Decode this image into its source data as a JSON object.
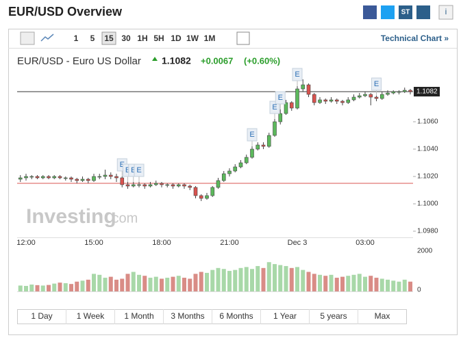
{
  "header": {
    "title": "EUR/USD Overview",
    "share_label": "ST",
    "info_label": "i"
  },
  "toolbar": {
    "intervals": [
      "1",
      "5",
      "15",
      "30",
      "1H",
      "5H",
      "1D",
      "1W",
      "1M"
    ],
    "selected": "15",
    "technical_chart": "Technical Chart »"
  },
  "quote": {
    "name": "EUR/USD - Euro US Dollar",
    "price": "1.1082",
    "change": "+0.0067",
    "change_percent": "(+0.60%)"
  },
  "watermark": {
    "brand": "Investing",
    "suffix": ".com"
  },
  "ranges": [
    "1 Day",
    "1 Week",
    "1 Month",
    "3 Months",
    "6 Months",
    "1 Year",
    "5 years",
    "Max"
  ],
  "chart_data": [
    {
      "type": "candlestick",
      "categories": [
        null,
        "12:00",
        null,
        null,
        null,
        null,
        null,
        null,
        null,
        null,
        null,
        null,
        null,
        "15:00",
        null,
        null,
        null,
        null,
        null,
        null,
        null,
        null,
        null,
        null,
        null,
        "18:00",
        null,
        null,
        null,
        null,
        null,
        null,
        null,
        null,
        null,
        null,
        null,
        "21:00",
        null,
        null,
        null,
        null,
        null,
        null,
        null,
        null,
        null,
        null,
        null,
        "Dec 3",
        null,
        null,
        null,
        null,
        null,
        null,
        null,
        null,
        null,
        null,
        null,
        "03:00",
        null,
        null,
        null,
        null,
        null,
        null,
        null,
        null
      ],
      "open": [
        1.1018,
        1.1019,
        1.102,
        1.102,
        1.1019,
        1.102,
        1.1019,
        1.102,
        1.1019,
        1.1019,
        1.1018,
        1.1017,
        1.1018,
        1.1017,
        1.102,
        1.102,
        1.1021,
        1.102,
        1.1019,
        1.1014,
        1.1013,
        1.1014,
        1.1014,
        1.1013,
        1.1014,
        1.1015,
        1.1014,
        1.1014,
        1.1013,
        1.1014,
        1.1013,
        1.1012,
        1.1006,
        1.1004,
        1.1006,
        1.1012,
        1.1017,
        1.1022,
        1.1024,
        1.1027,
        1.103,
        1.1034,
        1.104,
        1.1043,
        1.1042,
        1.105,
        1.106,
        1.1066,
        1.1074,
        1.107,
        1.1084,
        1.1087,
        1.108,
        1.1074,
        1.1076,
        1.1075,
        1.1076,
        1.1075,
        1.1074,
        1.1076,
        1.1078,
        1.1079,
        1.108,
        1.1078,
        1.1077,
        1.108,
        1.1081,
        1.1082,
        1.1082,
        1.1083
      ],
      "high": [
        1.1021,
        1.1022,
        1.1021,
        1.1021,
        1.1021,
        1.1021,
        1.1021,
        1.1021,
        1.102,
        1.102,
        1.1019,
        1.102,
        1.1019,
        1.1022,
        1.1022,
        1.1025,
        1.1023,
        1.1022,
        1.102,
        1.1016,
        1.1016,
        1.1016,
        1.1015,
        1.1016,
        1.1017,
        1.1016,
        1.1015,
        1.1015,
        1.1015,
        1.1015,
        1.1014,
        1.1013,
        1.1007,
        1.1008,
        1.1013,
        1.1019,
        1.1024,
        1.1026,
        1.1029,
        1.1032,
        1.1036,
        1.1042,
        1.1045,
        1.1045,
        1.1052,
        1.1062,
        1.1069,
        1.1076,
        1.1075,
        1.1086,
        1.1091,
        1.1088,
        1.1081,
        1.1078,
        1.1077,
        1.1078,
        1.1077,
        1.1076,
        1.1078,
        1.108,
        1.1081,
        1.1082,
        1.1081,
        1.1079,
        1.1082,
        1.1083,
        1.1083,
        1.1083,
        1.1085,
        1.1084
      ],
      "low": [
        1.1016,
        1.1017,
        1.1018,
        1.1018,
        1.1018,
        1.1018,
        1.1018,
        1.1018,
        1.1017,
        1.1016,
        1.1015,
        1.1016,
        1.1015,
        1.1016,
        1.1018,
        1.1018,
        1.1018,
        1.1016,
        1.1012,
        1.1011,
        1.1012,
        1.1012,
        1.1011,
        1.1012,
        1.1013,
        1.1012,
        1.1012,
        1.1011,
        1.1012,
        1.1011,
        1.101,
        1.1004,
        1.1002,
        1.1003,
        1.1005,
        1.1011,
        1.1016,
        1.102,
        1.1023,
        1.1026,
        1.1029,
        1.1033,
        1.1039,
        1.104,
        1.1041,
        1.1049,
        1.1058,
        1.1065,
        1.1068,
        1.1069,
        1.1082,
        1.1078,
        1.1072,
        1.1073,
        1.1073,
        1.1074,
        1.1073,
        1.1072,
        1.1073,
        1.1075,
        1.1077,
        1.1078,
        1.1072,
        1.1075,
        1.1076,
        1.1079,
        1.108,
        1.108,
        1.1081,
        1.108
      ],
      "close": [
        1.1019,
        1.102,
        1.102,
        1.1019,
        1.102,
        1.1019,
        1.102,
        1.1019,
        1.1019,
        1.1018,
        1.1017,
        1.1018,
        1.1017,
        1.102,
        1.102,
        1.1021,
        1.102,
        1.1019,
        1.1014,
        1.1013,
        1.1014,
        1.1014,
        1.1013,
        1.1014,
        1.1015,
        1.1014,
        1.1014,
        1.1013,
        1.1014,
        1.1013,
        1.1012,
        1.1006,
        1.1004,
        1.1006,
        1.1012,
        1.1017,
        1.1022,
        1.1024,
        1.1027,
        1.103,
        1.1034,
        1.104,
        1.1043,
        1.1042,
        1.105,
        1.106,
        1.1066,
        1.1074,
        1.107,
        1.1084,
        1.1087,
        1.108,
        1.1074,
        1.1076,
        1.1075,
        1.1076,
        1.1075,
        1.1074,
        1.1076,
        1.1078,
        1.1079,
        1.108,
        1.1078,
        1.1077,
        1.108,
        1.1081,
        1.1082,
        1.1082,
        1.1083,
        1.1082
      ],
      "up_color": "#5cb85c",
      "down_color": "#d9534f",
      "ylim": [
        1.09765,
        1.11015
      ],
      "yticks": [
        {
          "value": 1.098,
          "label": "1.0980"
        },
        {
          "value": 1.1,
          "label": "1.1000"
        },
        {
          "value": 1.102,
          "label": "1.1020"
        },
        {
          "value": 1.104,
          "label": "1.1040"
        },
        {
          "value": 1.106,
          "label": "1.1060"
        }
      ],
      "current_price": {
        "value": 1.1082,
        "label": "1.1082"
      },
      "reference_line": 1.1015,
      "events": [
        {
          "index": 18,
          "label": "E"
        },
        {
          "index": 19,
          "label": "E"
        },
        {
          "index": 20,
          "label": "E"
        },
        {
          "index": 21,
          "label": "E"
        },
        {
          "index": 41,
          "label": "E"
        },
        {
          "index": 45,
          "label": "E"
        },
        {
          "index": 46,
          "label": "E"
        },
        {
          "index": 49,
          "label": "E"
        },
        {
          "index": 63,
          "label": "E"
        }
      ]
    },
    {
      "type": "bar",
      "values": [
        300,
        280,
        350,
        320,
        300,
        330,
        400,
        450,
        420,
        380,
        500,
        550,
        600,
        900,
        850,
        700,
        750,
        600,
        650,
        900,
        1000,
        850,
        800,
        700,
        750,
        650,
        700,
        750,
        800,
        700,
        650,
        900,
        1000,
        950,
        1100,
        1200,
        1150,
        1050,
        1100,
        1200,
        1250,
        1150,
        1300,
        1200,
        1500,
        1400,
        1350,
        1300,
        1200,
        1250,
        1100,
        1000,
        900,
        850,
        800,
        850,
        700,
        750,
        800,
        850,
        900,
        750,
        800,
        700,
        650,
        600,
        550,
        500,
        600,
        500
      ],
      "up_color": "#a8d8a8",
      "down_color": "#d98c86",
      "ylim": [
        0,
        2000
      ],
      "yticks": [
        0,
        2000
      ]
    }
  ]
}
